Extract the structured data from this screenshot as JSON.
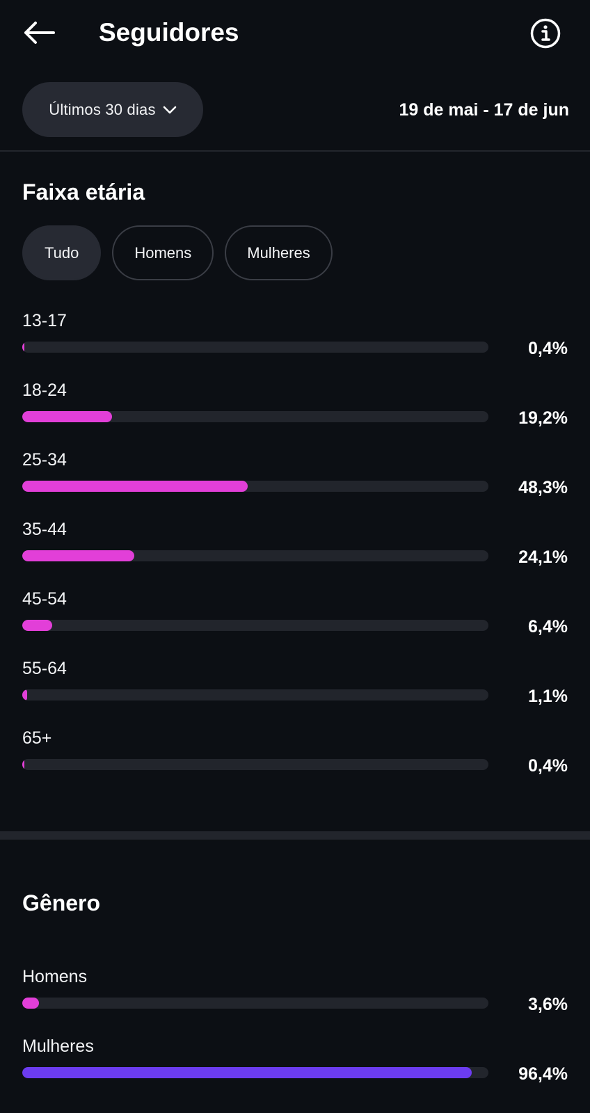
{
  "header": {
    "title": "Seguidores",
    "back_icon": "arrow-left-icon",
    "info_icon": "info-icon"
  },
  "period": {
    "selected": "Últimos 30 dias",
    "date_range": "19 de mai - 17 de jun"
  },
  "age_section": {
    "title": "Faixa etária",
    "filters": [
      {
        "label": "Tudo",
        "active": true
      },
      {
        "label": "Homens",
        "active": false
      },
      {
        "label": "Mulheres",
        "active": false
      }
    ],
    "bar_color": "#e23fd8",
    "rows": [
      {
        "label": "13-17",
        "value_text": "0,4%",
        "percent": 0.4
      },
      {
        "label": "18-24",
        "value_text": "19,2%",
        "percent": 19.2
      },
      {
        "label": "25-34",
        "value_text": "48,3%",
        "percent": 48.3
      },
      {
        "label": "35-44",
        "value_text": "24,1%",
        "percent": 24.1
      },
      {
        "label": "45-54",
        "value_text": "6,4%",
        "percent": 6.4
      },
      {
        "label": "55-64",
        "value_text": "1,1%",
        "percent": 1.1
      },
      {
        "label": "65+",
        "value_text": "0,4%",
        "percent": 0.4
      }
    ]
  },
  "gender_section": {
    "title": "Gênero",
    "rows": [
      {
        "label": "Homens",
        "value_text": "3,6%",
        "percent": 3.6,
        "color": "#e23fd8"
      },
      {
        "label": "Mulheres",
        "value_text": "96,4%",
        "percent": 96.4,
        "color": "#6c3cf0"
      }
    ]
  }
}
